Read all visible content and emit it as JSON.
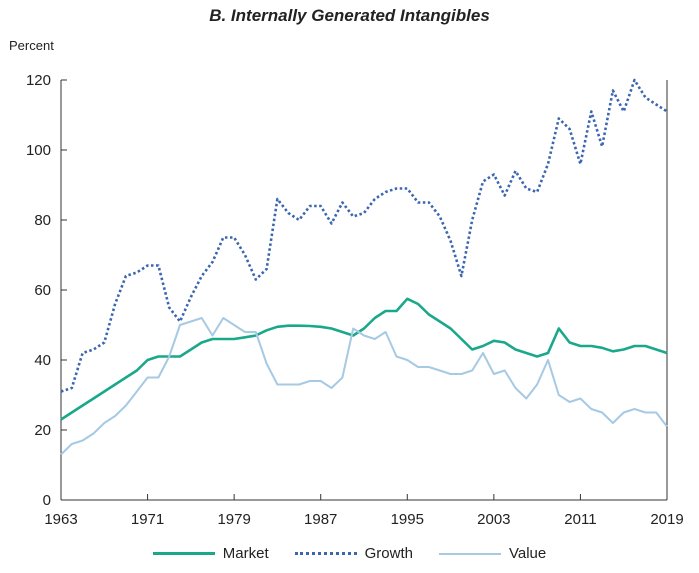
{
  "chart_data": {
    "type": "line",
    "title": "B. Internally Generated Intangibles",
    "ylabel": "Percent",
    "xlabel": "",
    "xlim": [
      1963,
      2019
    ],
    "ylim": [
      0,
      120
    ],
    "xticks": [
      1963,
      1971,
      1979,
      1987,
      1995,
      2003,
      2011,
      2019
    ],
    "yticks": [
      0,
      20,
      40,
      60,
      80,
      100,
      120
    ],
    "grid": false,
    "legend_position": "bottom",
    "series": [
      {
        "name": "Market",
        "color": "#1aa88a",
        "style": "solid",
        "x": [
          1963,
          1964,
          1965,
          1966,
          1967,
          1968,
          1969,
          1970,
          1971,
          1972,
          1973,
          1974,
          1975,
          1976,
          1977,
          1978,
          1979,
          1980,
          1981,
          1982,
          1983,
          1984,
          1985,
          1986,
          1987,
          1988,
          1989,
          1990,
          1991,
          1992,
          1993,
          1994,
          1995,
          1996,
          1997,
          1998,
          1999,
          2000,
          2001,
          2002,
          2003,
          2004,
          2005,
          2006,
          2007,
          2008,
          2009,
          2010,
          2011,
          2012,
          2013,
          2014,
          2015,
          2016,
          2017,
          2018,
          2019
        ],
        "values": [
          23,
          25,
          27,
          29,
          31,
          33,
          35,
          37,
          40,
          41,
          41,
          41,
          43,
          45,
          46,
          46,
          46,
          46.5,
          47,
          48.5,
          49.5,
          49.8,
          49.8,
          49.7,
          49.5,
          49,
          48,
          47,
          49,
          52,
          54,
          54,
          57.5,
          56,
          53,
          51,
          49,
          46,
          43,
          44,
          45.5,
          45,
          43,
          42,
          41,
          42,
          49,
          45,
          44,
          44,
          43.5,
          42.5,
          43,
          44,
          44,
          43,
          42
        ]
      },
      {
        "name": "Growth",
        "color": "#3a66b0",
        "style": "dotted",
        "x": [
          1963,
          1964,
          1965,
          1966,
          1967,
          1968,
          1969,
          1970,
          1971,
          1972,
          1973,
          1974,
          1975,
          1976,
          1977,
          1978,
          1979,
          1980,
          1981,
          1982,
          1983,
          1984,
          1985,
          1986,
          1987,
          1988,
          1989,
          1990,
          1991,
          1992,
          1993,
          1994,
          1995,
          1996,
          1997,
          1998,
          1999,
          2000,
          2001,
          2002,
          2003,
          2004,
          2005,
          2006,
          2007,
          2008,
          2009,
          2010,
          2011,
          2012,
          2013,
          2014,
          2015,
          2016,
          2017,
          2018,
          2019
        ],
        "values": [
          31,
          32,
          42,
          43,
          45,
          56,
          64,
          65,
          67,
          67,
          55,
          51,
          58,
          64,
          68,
          75,
          75,
          70,
          63,
          66,
          86,
          82,
          80,
          84,
          84,
          79,
          85,
          81,
          82,
          86,
          88,
          89,
          89,
          85,
          85,
          81,
          74,
          64,
          80,
          91,
          93,
          87,
          94,
          89,
          88,
          96,
          109,
          106,
          96,
          111,
          101,
          117,
          111,
          120,
          115,
          113,
          111
        ]
      },
      {
        "name": "Value",
        "color": "#a6c9e4",
        "style": "solid",
        "x": [
          1963,
          1964,
          1965,
          1966,
          1967,
          1968,
          1969,
          1970,
          1971,
          1972,
          1973,
          1974,
          1975,
          1976,
          1977,
          1978,
          1979,
          1980,
          1981,
          1982,
          1983,
          1984,
          1985,
          1986,
          1987,
          1988,
          1989,
          1990,
          1991,
          1992,
          1993,
          1994,
          1995,
          1996,
          1997,
          1998,
          1999,
          2000,
          2001,
          2002,
          2003,
          2004,
          2005,
          2006,
          2007,
          2008,
          2009,
          2010,
          2011,
          2012,
          2013,
          2014,
          2015,
          2016,
          2017,
          2018,
          2019
        ],
        "values": [
          13,
          16,
          17,
          19,
          22,
          24,
          27,
          31,
          35,
          35,
          41,
          50,
          51,
          52,
          47,
          52,
          50,
          48,
          48,
          39,
          33,
          33,
          33,
          34,
          34,
          32,
          35,
          49,
          47,
          46,
          48,
          41,
          40,
          38,
          38,
          37,
          36,
          36,
          37,
          42,
          36,
          37,
          32,
          29,
          33,
          40,
          30,
          28,
          29,
          26,
          25,
          22,
          25,
          26,
          25,
          25,
          21
        ]
      }
    ]
  }
}
